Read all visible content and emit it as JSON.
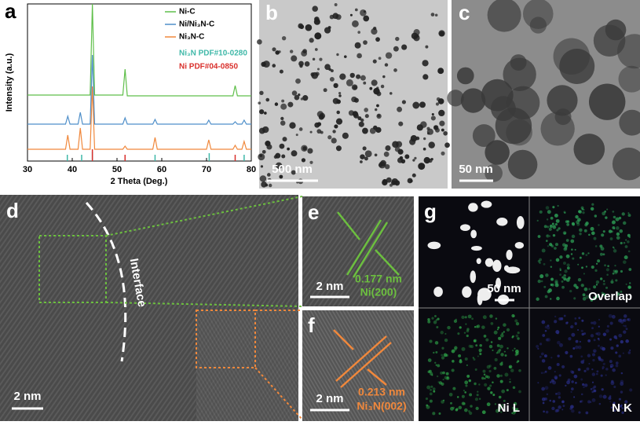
{
  "chart_data": {
    "type": "line",
    "panel_label": "a",
    "x_label": "2 Theta (Deg.)",
    "y_label": "Intensity (a.u.)",
    "xlim": [
      30,
      80
    ],
    "xticks": [
      30,
      40,
      50,
      60,
      70,
      80
    ],
    "ylim": [
      0,
      100
    ],
    "series": [
      {
        "name": "Ni-C",
        "color": "#5fbf4a",
        "x": [
          30,
          44,
          44.5,
          45,
          51.3,
          51.8,
          52.3,
          75.9,
          76.4,
          76.9,
          80
        ],
        "values": [
          42,
          42,
          100,
          42,
          42,
          58.5,
          41.5,
          41.5,
          48,
          41.5,
          41.5
        ]
      },
      {
        "name": "Ni/Ni₃N-C",
        "color": "#4f8fc9",
        "x": [
          30,
          38.5,
          39,
          39.5,
          41.3,
          41.8,
          42.3,
          44,
          44.5,
          45,
          51.3,
          51.8,
          52.3,
          58,
          58.5,
          59,
          70,
          70.5,
          71,
          75.9,
          76.4,
          76.9,
          77.9,
          78.4,
          78.9,
          80
        ],
        "values": [
          23.5,
          23.5,
          28.5,
          23.5,
          23.5,
          31,
          23.5,
          23.5,
          67.5,
          23.5,
          23.5,
          27.5,
          23.5,
          23.5,
          26.5,
          23.5,
          23.5,
          26,
          23.5,
          23.5,
          25,
          23.5,
          23.5,
          26,
          23.5,
          23.5
        ]
      },
      {
        "name": "Ni₃N-C",
        "color": "#f0883c",
        "x": [
          30,
          38.5,
          39,
          39.5,
          41.3,
          41.8,
          42.3,
          44,
          44.5,
          45,
          51.3,
          51.8,
          52.3,
          58,
          58.5,
          59,
          70,
          70.5,
          71,
          75.9,
          76.4,
          76.9,
          77.9,
          78.4,
          78.9,
          80
        ],
        "values": [
          7.5,
          7.5,
          16.5,
          7.5,
          7.5,
          21,
          7.5,
          7.5,
          47.5,
          7.5,
          7.5,
          9.5,
          7.5,
          7.5,
          15,
          7.5,
          7.5,
          13.5,
          7.5,
          7.5,
          10,
          7.5,
          7.5,
          12.5,
          7.5,
          7.5
        ]
      }
    ],
    "references": [
      {
        "name": "Ni₃N PDF#10-0280",
        "color": "#3fb8a8",
        "x": [
          38.9,
          42.1,
          44.5,
          58.5,
          70.6,
          78.4
        ],
        "values": [
          4,
          4,
          6,
          4,
          5,
          4
        ]
      },
      {
        "name": "Ni PDF#04-0850",
        "color": "#d9302c",
        "x": [
          44.5,
          51.8,
          76.4
        ],
        "values": [
          7.5,
          4,
          4
        ]
      }
    ]
  },
  "panels": {
    "b": {
      "letter": "b",
      "scale_bar": "500 nm"
    },
    "c": {
      "letter": "c",
      "scale_bar": "50 nm"
    },
    "d": {
      "letter": "d",
      "scale_bar": "2 nm",
      "annotation": "Interface"
    },
    "e": {
      "letter": "e",
      "scale_bar": "2 nm",
      "spacing": "0.177 nm",
      "plane": "Ni(200)"
    },
    "f": {
      "letter": "f",
      "scale_bar": "2 nm",
      "spacing": "0.213 nm",
      "plane": "Ni₃N(002)"
    },
    "g": {
      "letter": "g",
      "scale_bar": "50 nm",
      "maps": [
        "Overlap",
        "Ni L",
        "N K"
      ]
    }
  }
}
